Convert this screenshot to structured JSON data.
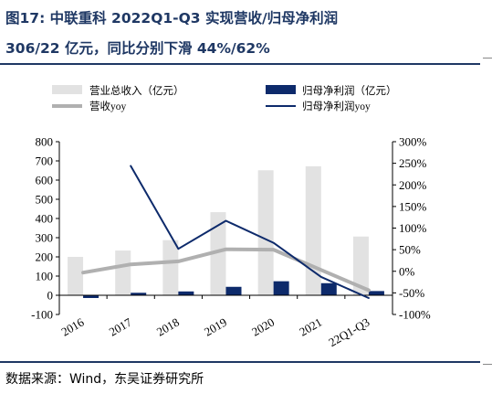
{
  "figure": {
    "title_line1": "图17:  中联重科  2022Q1-Q3  实现营收/归母净利润",
    "title_line2": "306/22 亿元，同比分别下滑 44%/62%",
    "source": "数据来源：Wind，东吴证券研究所"
  },
  "chart_data": {
    "type": "bar",
    "categories": [
      "2016",
      "2017",
      "2018",
      "2019",
      "2020",
      "2021",
      "22Q1-Q3"
    ],
    "series": [
      {
        "name": "营业总收入（亿元）",
        "kind": "bar",
        "axis": "left",
        "color": "#e2e2e2",
        "values": [
          200,
          233,
          287,
          433,
          651,
          672,
          306
        ]
      },
      {
        "name": "归母净利润（亿元）",
        "kind": "bar",
        "axis": "left",
        "color": "#0d2a6b",
        "values": [
          -9,
          13,
          20,
          44,
          73,
          63,
          22
        ]
      },
      {
        "name": "营收yoy",
        "kind": "line",
        "axis": "right",
        "color": "#b0b0b0",
        "values": [
          -3,
          16,
          23,
          51,
          50,
          3,
          -44
        ]
      },
      {
        "name": "归母净利润yoy",
        "kind": "line",
        "axis": "right",
        "color": "#0d2a6b",
        "values": [
          null,
          244,
          52,
          117,
          66,
          -13,
          -62
        ]
      }
    ],
    "left_axis": {
      "range": [
        -100,
        800
      ],
      "ticks": [
        "800",
        "700",
        "600",
        "500",
        "400",
        "300",
        "200",
        "100",
        "0",
        "-100"
      ]
    },
    "right_axis": {
      "range": [
        -100,
        300
      ],
      "ticks": [
        "300%",
        "250%",
        "200%",
        "150%",
        "100%",
        "50%",
        "0%",
        "-50%",
        "-100%"
      ]
    },
    "legend_position": "top",
    "grid": false
  }
}
